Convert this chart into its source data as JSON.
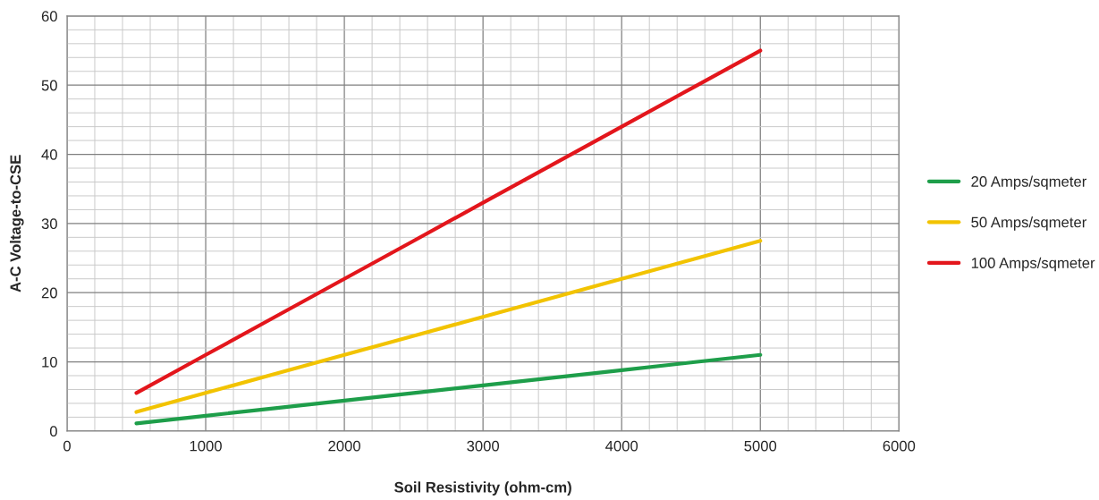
{
  "chart_data": {
    "type": "line",
    "xlabel": "Soil Resistivity (ohm-cm)",
    "ylabel": "A-C Voltage-to-CSE",
    "x": [
      500,
      1000,
      1500,
      2000,
      2500,
      3000,
      3500,
      4000,
      4500,
      5000
    ],
    "series": [
      {
        "name": "20 Amps/sqmeter",
        "color": "#1e9e4a",
        "values": [
          1.1,
          2.2,
          3.3,
          4.4,
          5.5,
          6.6,
          7.7,
          8.8,
          9.9,
          11
        ]
      },
      {
        "name": "50 Amps/sqmeter",
        "color": "#f2c300",
        "values": [
          2.75,
          5.5,
          8.25,
          11,
          13.75,
          16.5,
          19.25,
          22,
          24.75,
          27.5
        ]
      },
      {
        "name": "100 Amps/sqmeter",
        "color": "#e3161c",
        "values": [
          5.5,
          11,
          16.5,
          22,
          27.5,
          33,
          38.5,
          44,
          49.5,
          55
        ]
      }
    ],
    "xlim": [
      0,
      6000
    ],
    "xticks": [
      0,
      1000,
      2000,
      3000,
      4000,
      5000,
      6000
    ],
    "ylim": [
      0,
      60
    ],
    "yticks": [
      0,
      10,
      20,
      30,
      40,
      50,
      60
    ],
    "grid": true,
    "legend": "right",
    "marker": "none",
    "line_style": "solid"
  }
}
